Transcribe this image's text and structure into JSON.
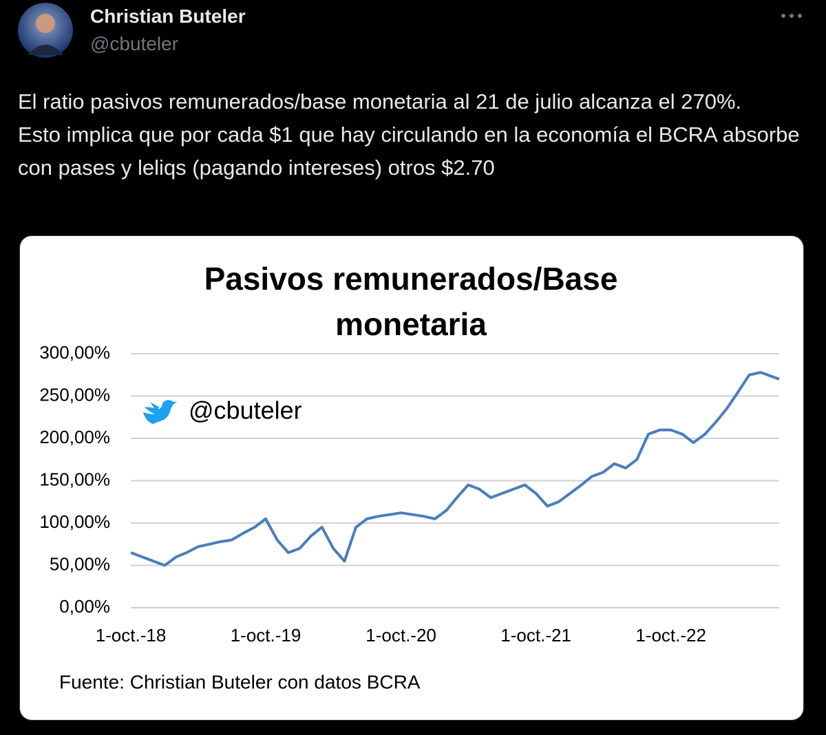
{
  "author": {
    "name": "Christian Buteler",
    "handle": "@cbuteler"
  },
  "tweet": {
    "paragraphs": [
      "El ratio pasivos remunerados/base monetaria al 21 de julio alcanza el 270%.",
      "Esto implica que por cada $1 que hay circulando en la economía el BCRA absorbe con pases y leliqs (pagando intereses) otros $2.70"
    ]
  },
  "chart_data": {
    "type": "line",
    "title": "Pasivos remunerados/Base monetaria",
    "watermark": "@cbuteler",
    "source": "Fuente: Christian Buteler con datos BCRA",
    "color": "#4a7ebb",
    "grid": true,
    "x": [
      "2018-10-01",
      "2018-11-01",
      "2018-12-01",
      "2019-01-01",
      "2019-02-01",
      "2019-03-01",
      "2019-04-01",
      "2019-05-01",
      "2019-06-01",
      "2019-07-01",
      "2019-08-01",
      "2019-09-01",
      "2019-10-01",
      "2019-11-01",
      "2019-12-01",
      "2020-01-01",
      "2020-02-01",
      "2020-03-01",
      "2020-04-01",
      "2020-05-01",
      "2020-06-01",
      "2020-07-01",
      "2020-08-01",
      "2020-09-01",
      "2020-10-01",
      "2020-11-01",
      "2020-12-01",
      "2021-01-01",
      "2021-02-01",
      "2021-03-01",
      "2021-04-01",
      "2021-05-01",
      "2021-06-01",
      "2021-07-01",
      "2021-08-01",
      "2021-09-01",
      "2021-10-01",
      "2021-11-01",
      "2021-12-01",
      "2022-01-01",
      "2022-02-01",
      "2022-03-01",
      "2022-04-01",
      "2022-05-01",
      "2022-06-01",
      "2022-07-01",
      "2022-08-01",
      "2022-09-01",
      "2022-10-01",
      "2022-11-01",
      "2022-12-01",
      "2023-01-01",
      "2023-02-01",
      "2023-03-01",
      "2023-04-01",
      "2023-05-01",
      "2023-06-01",
      "2023-07-21"
    ],
    "values": [
      65,
      60,
      55,
      50,
      60,
      65,
      72,
      75,
      78,
      80,
      88,
      95,
      105,
      80,
      65,
      70,
      85,
      95,
      70,
      55,
      95,
      105,
      108,
      110,
      112,
      110,
      108,
      105,
      115,
      130,
      145,
      140,
      130,
      135,
      140,
      145,
      135,
      120,
      125,
      135,
      145,
      155,
      160,
      170,
      165,
      175,
      205,
      210,
      210,
      205,
      195,
      205,
      220,
      235,
      255,
      275,
      278,
      270
    ],
    "xlim": [
      "2018-10-01",
      "2023-07-21"
    ],
    "xticks": [
      {
        "value": "2018-10-01",
        "label": "1-oct.-18"
      },
      {
        "value": "2019-10-01",
        "label": "1-oct.-19"
      },
      {
        "value": "2020-10-01",
        "label": "1-oct.-20"
      },
      {
        "value": "2021-10-01",
        "label": "1-oct.-21"
      },
      {
        "value": "2022-10-01",
        "label": "1-oct.-22"
      }
    ],
    "ylim": [
      0,
      300
    ],
    "yticks": [
      {
        "value": 0,
        "label": "0,00%"
      },
      {
        "value": 50,
        "label": "50,00%"
      },
      {
        "value": 100,
        "label": "100,00%"
      },
      {
        "value": 150,
        "label": "150,00%"
      },
      {
        "value": 200,
        "label": "200,00%"
      },
      {
        "value": 250,
        "label": "250,00%"
      },
      {
        "value": 300,
        "label": "300,00%"
      }
    ]
  }
}
